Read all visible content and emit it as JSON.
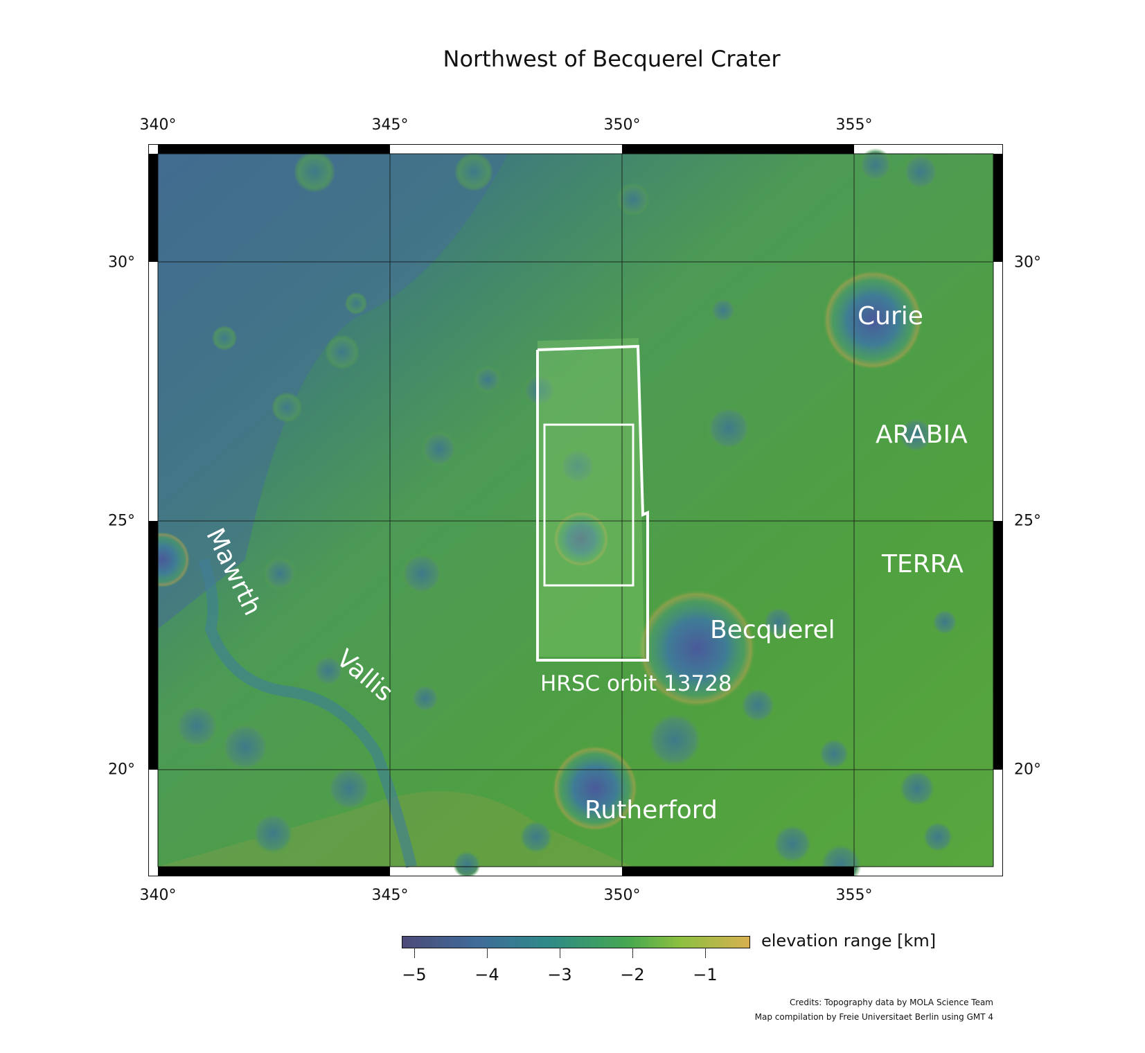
{
  "title": "Northwest of Becquerel Crater",
  "axes": {
    "longitude_labels": [
      "340°",
      "345°",
      "350°",
      "355°"
    ],
    "latitude_labels": [
      "30°",
      "25°",
      "20°"
    ]
  },
  "map": {
    "place_labels": {
      "curie": "Curie",
      "arabia": "ARABIA",
      "terra": "TERRA",
      "becquerel": "Becquerel",
      "rutherford": "Rutherford",
      "mawrth": "Mawrth",
      "vallis": "Vallis",
      "hrsc": "HRSC orbit 13728"
    },
    "footprint_color": "#ffffff"
  },
  "colorbar": {
    "title": "elevation range [km]",
    "ticks": [
      "−5",
      "−4",
      "−3",
      "−2",
      "−1"
    ],
    "tick_values": [
      -5,
      -4,
      -3,
      -2,
      -1
    ],
    "colors": [
      "#4c4a78",
      "#3f6c9a",
      "#2f8a88",
      "#45a850",
      "#8cc040",
      "#d8b050"
    ]
  },
  "credits": {
    "line1": "Credits: Topography data by MOLA Science Team",
    "line2": "Map compilation by Freie Universitaet Berlin using GMT 4"
  }
}
